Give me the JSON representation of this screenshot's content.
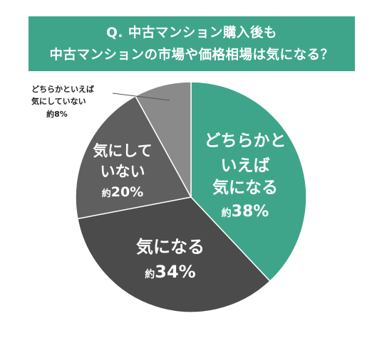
{
  "title": {
    "line1": "Q. 中古マンション購入後も",
    "line2": "中古マンションの市場や価格相場は気になる？"
  },
  "chart_data": {
    "type": "pie",
    "start_angle_deg": 0,
    "direction": "clockwise",
    "slices": [
      {
        "label_lines": [
          "どちらかと",
          "いえば",
          "気になる"
        ],
        "prefix": "約",
        "percent_text": "38%",
        "value": 38,
        "color": "#3ea58b",
        "text_color": "#ffffff"
      },
      {
        "label_lines": [
          "気になる"
        ],
        "prefix": "約",
        "percent_text": "34%",
        "value": 34,
        "color": "#4b4b4b",
        "text_color": "#ffffff"
      },
      {
        "label_lines": [
          "気にして",
          "いない"
        ],
        "prefix": "約",
        "percent_text": "20%",
        "value": 20,
        "color": "#5f5f5f",
        "text_color": "#ffffff"
      },
      {
        "label_lines": [
          "どちらかといえば",
          "気にしていない"
        ],
        "prefix": "約",
        "percent_text": "8%",
        "value": 8,
        "color": "#8a8a8a",
        "text_color": "#222222"
      }
    ]
  }
}
